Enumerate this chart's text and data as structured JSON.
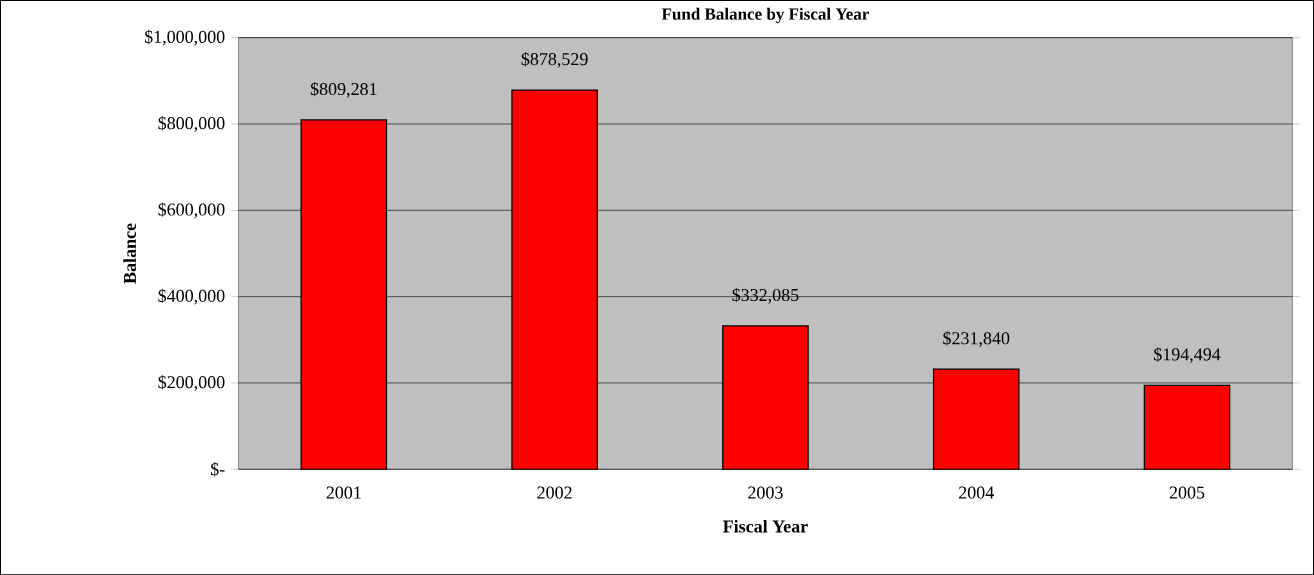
{
  "chart_data": {
    "type": "bar",
    "title": "Fund Balance by Fiscal Year",
    "xlabel": "Fiscal Year",
    "ylabel": "Balance",
    "categories": [
      "2001",
      "2002",
      "2003",
      "2004",
      "2005"
    ],
    "values": [
      809281,
      878529,
      332085,
      231840,
      194494
    ],
    "value_labels": [
      "$809,281",
      "$878,529",
      "$332,085",
      "$231,840",
      "$194,494"
    ],
    "color": "#ff0000",
    "ylim": [
      0,
      1000000
    ],
    "yticks": [
      {
        "value": 0,
        "label": "$-"
      },
      {
        "value": 200000,
        "label": "$200,000"
      },
      {
        "value": 400000,
        "label": "$400,000"
      },
      {
        "value": 600000,
        "label": "$600,000"
      },
      {
        "value": 800000,
        "label": "$800,000"
      },
      {
        "value": 1000000,
        "label": "$1,000,000"
      }
    ],
    "grid": "y"
  }
}
